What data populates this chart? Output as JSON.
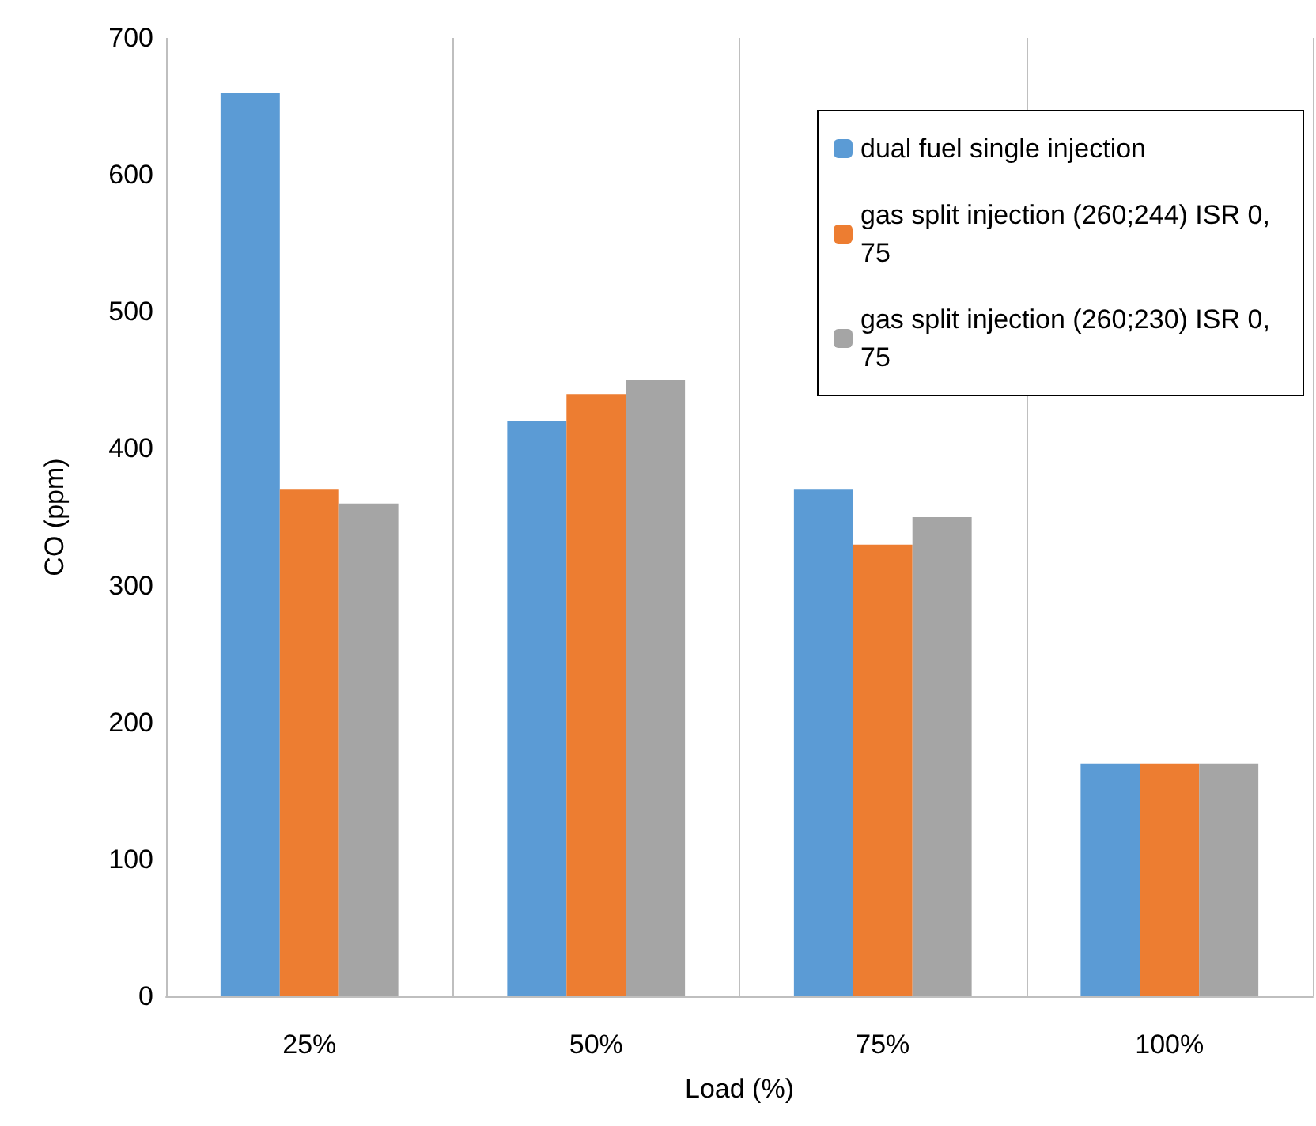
{
  "chart_data": {
    "type": "bar",
    "xlabel": "Load (%)",
    "ylabel": "CO (ppm)",
    "categories": [
      "25%",
      "50%",
      "75%",
      "100%"
    ],
    "series": [
      {
        "name": "dual fuel single injection",
        "color": "#5b9bd5",
        "values": [
          660,
          420,
          370,
          170
        ]
      },
      {
        "name": "gas split injection (260;244) ISR 0,75",
        "color": "#ed7d31",
        "values": [
          370,
          440,
          330,
          170
        ]
      },
      {
        "name": "gas split injection (260;230) ISR 0,75",
        "color": "#a5a5a5",
        "values": [
          360,
          450,
          350,
          170
        ]
      }
    ],
    "ylim": [
      0,
      700
    ],
    "yticks": [
      0,
      100,
      200,
      300,
      400,
      500,
      600,
      700
    ],
    "grid": "x",
    "legend": "top right"
  }
}
